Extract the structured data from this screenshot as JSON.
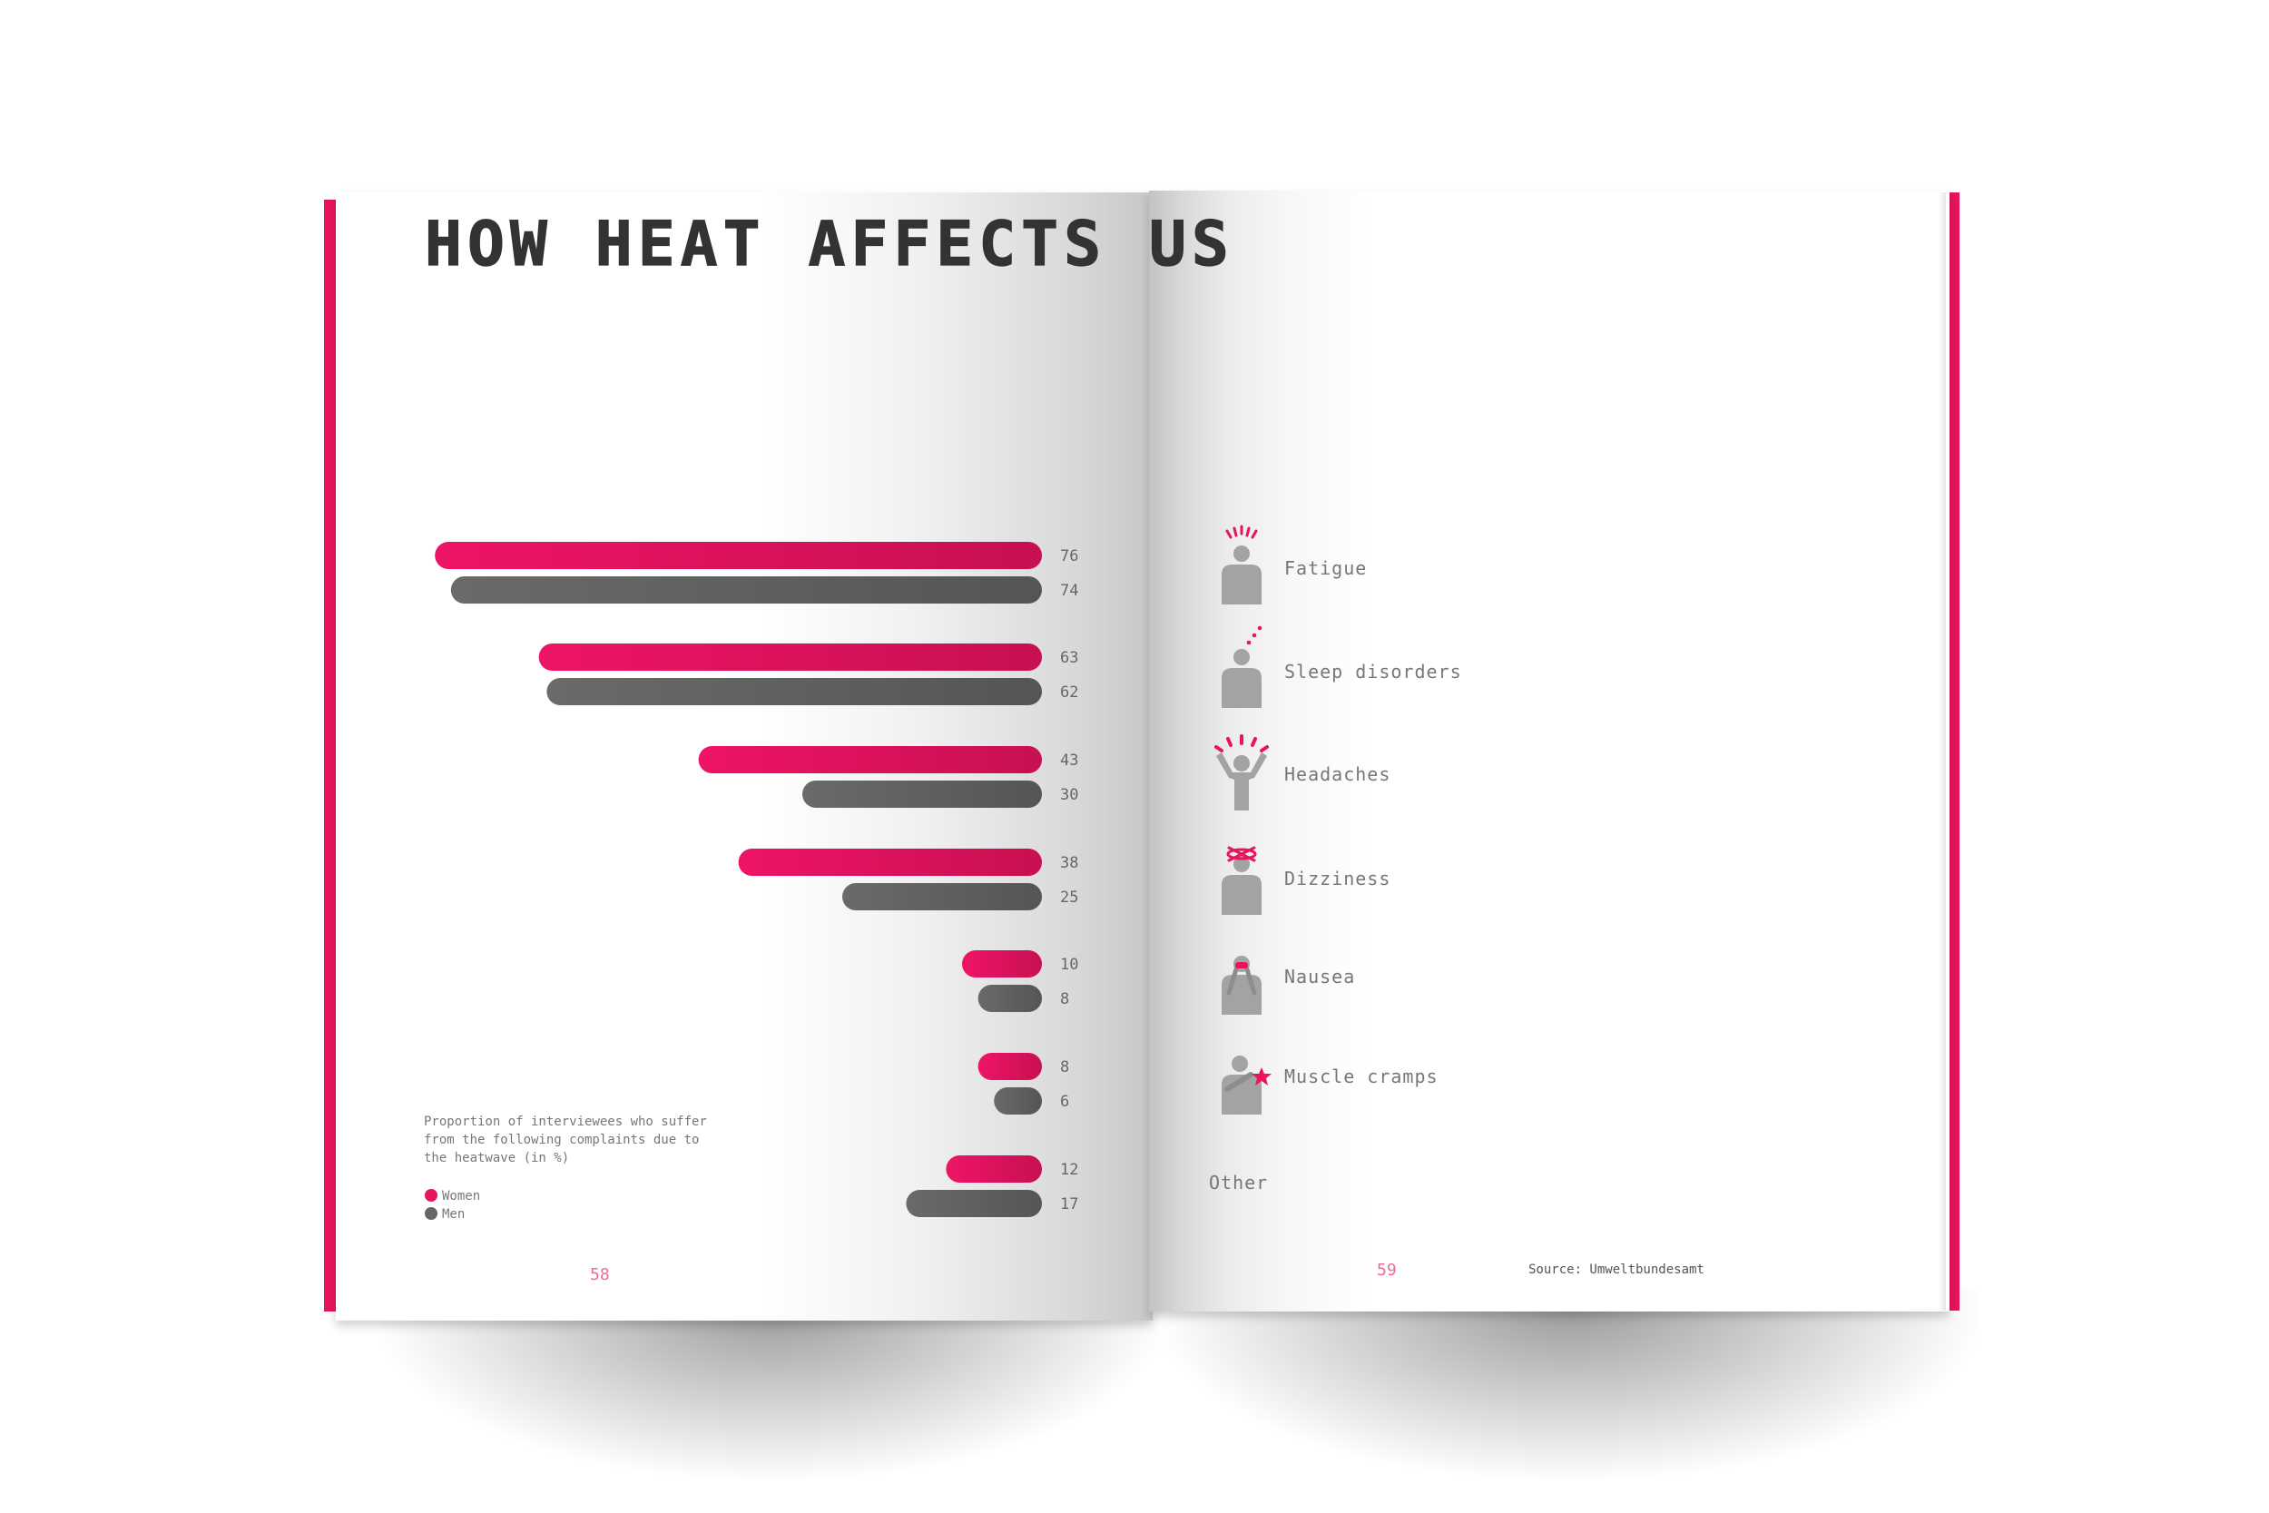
{
  "title": "HOW HEAT AFFECTS US",
  "note": {
    "lines": [
      "Proportion of interviewees who suffer",
      "from the following complaints due to",
      "the heatwave (in %)"
    ]
  },
  "legend": {
    "women": "Women",
    "men": "Men"
  },
  "pages": {
    "left": "58",
    "right": "59"
  },
  "source": "Source: Umweltbundesamt",
  "colors": {
    "women": "#e8145e",
    "men": "#666666",
    "accent": "#e8145e"
  },
  "icons": [
    "fatigue-icon",
    "sleep-disorders-icon",
    "headaches-icon",
    "dizziness-icon",
    "nausea-icon",
    "muscle-cramps-icon"
  ],
  "chart_data": {
    "type": "bar",
    "orientation": "horizontal",
    "categories": [
      "Fatigue",
      "Sleep disorders",
      "Headaches",
      "Dizziness",
      "Nausea",
      "Muscle cramps",
      "Other"
    ],
    "series": [
      {
        "name": "Women",
        "values": [
          76,
          63,
          43,
          38,
          10,
          8,
          12
        ]
      },
      {
        "name": "Men",
        "values": [
          74,
          62,
          30,
          25,
          8,
          6,
          17
        ]
      }
    ],
    "xlim": [
      0,
      80
    ],
    "grid": false,
    "legend_position": "bottom-left"
  }
}
